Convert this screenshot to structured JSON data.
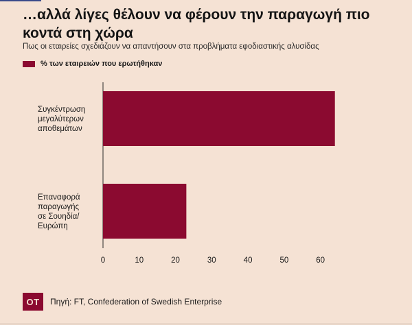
{
  "header": {
    "title": "…αλλά λίγες θέλουν να φέρουν την παραγωγή πιο κοντά στη χώρα",
    "subtitle": "Πως οι εταιρείες σχεδιάζουν να απαντήσουν στα προβλήματα εφοδιαστικής αλυσίδας"
  },
  "footer": {
    "logo": "OT",
    "source": "Πηγή: FT, Confederation of Swedish Enterprise"
  },
  "colors": {
    "background": "#f5e2d4",
    "bar": "#8b0a30"
  },
  "chart_data": {
    "type": "bar",
    "orientation": "horizontal",
    "categories": [
      [
        "Συγκέντρωση",
        "μεγαλύτερων",
        "αποθεμάτων"
      ],
      [
        "Επαναφορά",
        "παραγωγής",
        "σε Σουηδία/",
        "Ευρώπη"
      ]
    ],
    "series": [
      {
        "name": "% των εταιρειών που ερωτήθηκαν",
        "values": [
          64,
          23
        ]
      }
    ],
    "xlim": [
      0,
      65
    ],
    "xticks": [
      0,
      10,
      20,
      30,
      40,
      50,
      60
    ],
    "legend_position": "top-left",
    "grid": false
  }
}
